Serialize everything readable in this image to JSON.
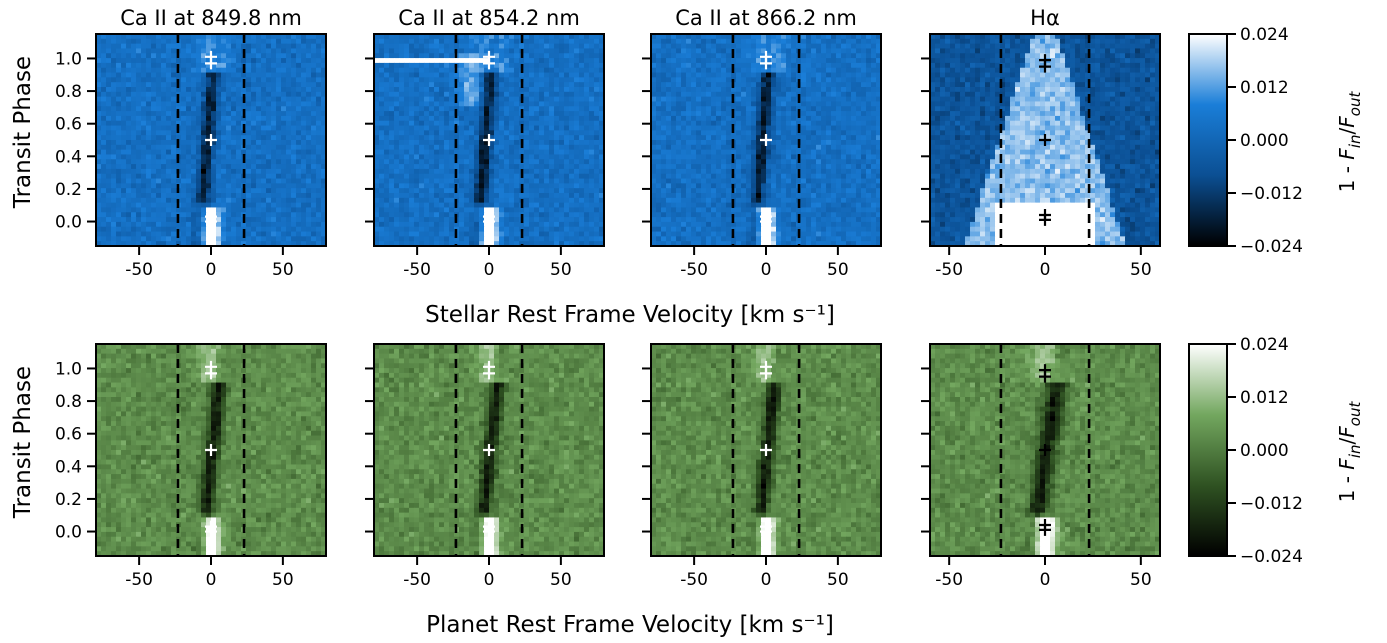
{
  "figure": {
    "row_xlabels": [
      "Stellar Rest Frame Velocity [km s⁻¹]",
      "Planet Rest Frame Velocity [km s⁻¹]"
    ],
    "ylabel": "Transit Phase",
    "colorbar_label": "1 - F_in/F_out",
    "colorbar_ticks": [
      "0.024",
      "0.012",
      "0.000",
      "−0.012",
      "−0.024"
    ],
    "colorbar_range": [
      -0.024,
      0.024
    ],
    "colormaps": {
      "blue": [
        "#000000",
        "#0b4f93",
        "#1a7ed8",
        "#ffffff"
      ],
      "green": [
        "#000000",
        "#2f5222",
        "#73a75f",
        "#ffffff"
      ]
    }
  },
  "chart_data": [
    {
      "type": "heatmap",
      "row": "stellar",
      "colormap": "blue",
      "title": "Ca II at 849.8 nm",
      "xlim": [
        -80,
        80
      ],
      "ylim": [
        -0.15,
        1.15
      ],
      "xticks": [
        -50,
        0,
        50
      ],
      "yticks": [
        0.0,
        0.2,
        0.4,
        0.6,
        0.8,
        1.0
      ],
      "xticklabels": [
        "-50",
        "0",
        "50"
      ],
      "yticklabels": [
        "0.0",
        "0.2",
        "0.4",
        "0.6",
        "0.8",
        "1.0"
      ],
      "dashed_lines_x": [
        -23,
        23
      ],
      "markers": [
        {
          "x": 0,
          "y": 1.01
        },
        {
          "x": 0,
          "y": 0.97
        },
        {
          "x": 0,
          "y": 0.5
        },
        {
          "x": 0,
          "y": 0.03
        },
        {
          "x": 0,
          "y": 0.0
        }
      ],
      "marker_color": "white"
    },
    {
      "type": "heatmap",
      "row": "stellar",
      "colormap": "blue",
      "title": "Ca II at 854.2 nm",
      "xlim": [
        -80,
        80
      ],
      "ylim": [
        -0.15,
        1.15
      ],
      "xticks": [
        -50,
        0,
        50
      ],
      "yticks": [
        0.0,
        0.2,
        0.4,
        0.6,
        0.8,
        1.0
      ],
      "xticklabels": [
        "-50",
        "0",
        "50"
      ],
      "yticklabels": [],
      "dashed_lines_x": [
        -23,
        23
      ],
      "markers": [
        {
          "x": 0,
          "y": 1.01
        },
        {
          "x": 0,
          "y": 0.97
        },
        {
          "x": 0,
          "y": 0.5
        },
        {
          "x": 0,
          "y": 0.03
        },
        {
          "x": 0,
          "y": 0.0
        }
      ],
      "marker_color": "white"
    },
    {
      "type": "heatmap",
      "row": "stellar",
      "colormap": "blue",
      "title": "Ca II at 866.2 nm",
      "xlim": [
        -80,
        80
      ],
      "ylim": [
        -0.15,
        1.15
      ],
      "xticks": [
        -50,
        0,
        50
      ],
      "yticks": [
        0.0,
        0.2,
        0.4,
        0.6,
        0.8,
        1.0
      ],
      "xticklabels": [
        "-50",
        "0",
        "50"
      ],
      "yticklabels": [],
      "dashed_lines_x": [
        -23,
        23
      ],
      "markers": [
        {
          "x": 0,
          "y": 1.01
        },
        {
          "x": 0,
          "y": 0.97
        },
        {
          "x": 0,
          "y": 0.5
        },
        {
          "x": 0,
          "y": 0.03
        },
        {
          "x": 0,
          "y": 0.0
        }
      ],
      "marker_color": "white"
    },
    {
      "type": "heatmap",
      "row": "stellar",
      "colormap": "blue",
      "title": "Hα",
      "xlim": [
        -60,
        60
      ],
      "ylim": [
        -0.15,
        1.15
      ],
      "xticks": [
        -50,
        0,
        50
      ],
      "yticks": [
        0.0,
        0.2,
        0.4,
        0.6,
        0.8,
        1.0
      ],
      "xticklabels": [
        "-50",
        "0",
        "50"
      ],
      "yticklabels": [],
      "dashed_lines_x": [
        -23,
        23
      ],
      "markers": [
        {
          "x": 0,
          "y": 0.99
        },
        {
          "x": 0,
          "y": 0.95
        },
        {
          "x": 0,
          "y": 0.5
        },
        {
          "x": 0,
          "y": 0.04
        },
        {
          "x": 0,
          "y": 0.01
        }
      ],
      "marker_color": "black"
    },
    {
      "type": "heatmap",
      "row": "planet",
      "colormap": "green",
      "title": "",
      "xlim": [
        -80,
        80
      ],
      "ylim": [
        -0.15,
        1.15
      ],
      "xticks": [
        -50,
        0,
        50
      ],
      "yticks": [
        0.0,
        0.2,
        0.4,
        0.6,
        0.8,
        1.0
      ],
      "xticklabels": [
        "-50",
        "0",
        "50"
      ],
      "yticklabels": [
        "0.0",
        "0.2",
        "0.4",
        "0.6",
        "0.8",
        "1.0"
      ],
      "dashed_lines_x": [
        -23,
        23
      ],
      "markers": [
        {
          "x": 0,
          "y": 1.01
        },
        {
          "x": 0,
          "y": 0.97
        },
        {
          "x": 0,
          "y": 0.5
        },
        {
          "x": 0,
          "y": 0.03
        },
        {
          "x": 0,
          "y": 0.0
        }
      ],
      "marker_color": "white"
    },
    {
      "type": "heatmap",
      "row": "planet",
      "colormap": "green",
      "title": "",
      "xlim": [
        -80,
        80
      ],
      "ylim": [
        -0.15,
        1.15
      ],
      "xticks": [
        -50,
        0,
        50
      ],
      "yticks": [
        0.0,
        0.2,
        0.4,
        0.6,
        0.8,
        1.0
      ],
      "xticklabels": [
        "-50",
        "0",
        "50"
      ],
      "yticklabels": [],
      "dashed_lines_x": [
        -23,
        23
      ],
      "markers": [
        {
          "x": 0,
          "y": 1.01
        },
        {
          "x": 0,
          "y": 0.97
        },
        {
          "x": 0,
          "y": 0.5
        },
        {
          "x": 0,
          "y": 0.03
        },
        {
          "x": 0,
          "y": 0.0
        }
      ],
      "marker_color": "white"
    },
    {
      "type": "heatmap",
      "row": "planet",
      "colormap": "green",
      "title": "",
      "xlim": [
        -80,
        80
      ],
      "ylim": [
        -0.15,
        1.15
      ],
      "xticks": [
        -50,
        0,
        50
      ],
      "yticks": [
        0.0,
        0.2,
        0.4,
        0.6,
        0.8,
        1.0
      ],
      "xticklabels": [
        "-50",
        "0",
        "50"
      ],
      "yticklabels": [],
      "dashed_lines_x": [
        -23,
        23
      ],
      "markers": [
        {
          "x": 0,
          "y": 1.01
        },
        {
          "x": 0,
          "y": 0.97
        },
        {
          "x": 0,
          "y": 0.5
        },
        {
          "x": 0,
          "y": 0.03
        },
        {
          "x": 0,
          "y": 0.0
        }
      ],
      "marker_color": "white"
    },
    {
      "type": "heatmap",
      "row": "planet",
      "colormap": "green",
      "title": "",
      "xlim": [
        -60,
        60
      ],
      "ylim": [
        -0.15,
        1.15
      ],
      "xticks": [
        -50,
        0,
        50
      ],
      "yticks": [
        0.0,
        0.2,
        0.4,
        0.6,
        0.8,
        1.0
      ],
      "xticklabels": [
        "-50",
        "0",
        "50"
      ],
      "yticklabels": [],
      "dashed_lines_x": [
        -23,
        23
      ],
      "markers": [
        {
          "x": 0,
          "y": 0.99
        },
        {
          "x": 0,
          "y": 0.95
        },
        {
          "x": 0,
          "y": 0.5
        },
        {
          "x": 0,
          "y": 0.04
        },
        {
          "x": 0,
          "y": 0.01
        }
      ],
      "marker_color": "black"
    }
  ]
}
